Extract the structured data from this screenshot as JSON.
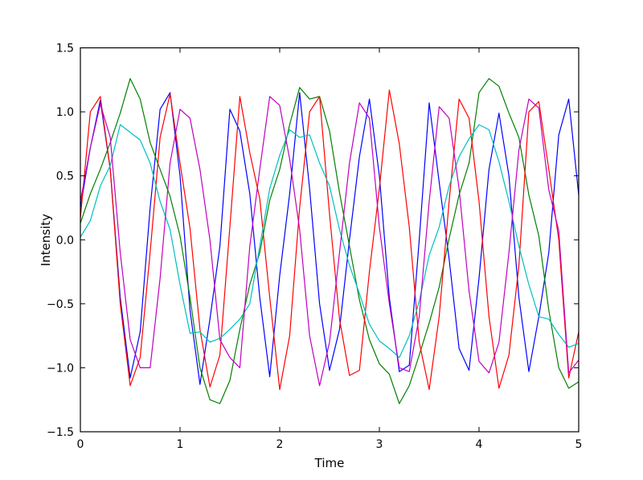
{
  "figure": {
    "background": "#ffffff",
    "frame_color": "#000000"
  },
  "chart_data": {
    "type": "line",
    "title": "",
    "xlabel": "Time",
    "ylabel": "Intensity",
    "xlim": [
      0,
      5
    ],
    "ylim": [
      -1.5,
      1.5
    ],
    "grid": false,
    "legend": "none",
    "x_ticks": [
      "0",
      "1",
      "2",
      "3",
      "4",
      "5"
    ],
    "x_tick_values": [
      0,
      1,
      2,
      3,
      4,
      5
    ],
    "y_ticks": [
      "−1.5",
      "−1.0",
      "−0.5",
      "0.0",
      "0.5",
      "1.0",
      "1.5"
    ],
    "y_tick_values": [
      -1.5,
      -1.0,
      -0.5,
      0.0,
      0.5,
      1.0,
      1.5
    ],
    "t0": 0,
    "dt": 0.1,
    "series": [
      {
        "name": "blue-wave",
        "color": "#0000ff",
        "values": [
          0.25,
          0.72,
          1.09,
          0.55,
          -0.45,
          -1.08,
          -0.72,
          0.25,
          1.02,
          1.15,
          0.5,
          -0.55,
          -1.13,
          -0.62,
          -0.05,
          1.02,
          0.85,
          0.36,
          -0.45,
          -1.07,
          -0.28,
          0.36,
          1.15,
          0.4,
          -0.5,
          -1.02,
          -0.7,
          0.0,
          0.65,
          1.1,
          0.5,
          -0.45,
          -1.03,
          -0.98,
          0.0,
          1.07,
          0.45,
          -0.15,
          -0.85,
          -1.02,
          -0.3,
          0.55,
          0.99,
          0.5,
          -0.45,
          -1.03,
          -0.6,
          -0.1,
          0.82,
          1.1,
          0.35
        ]
      },
      {
        "name": "green-wave",
        "color": "#008000",
        "values": [
          0.13,
          0.36,
          0.55,
          0.76,
          0.99,
          1.26,
          1.1,
          0.76,
          0.55,
          0.34,
          0.03,
          -0.45,
          -1.0,
          -1.25,
          -1.28,
          -1.1,
          -0.7,
          -0.35,
          -0.1,
          0.31,
          0.55,
          0.9,
          1.19,
          1.1,
          1.12,
          0.85,
          0.37,
          -0.05,
          -0.47,
          -0.78,
          -0.97,
          -1.05,
          -1.28,
          -1.14,
          -0.9,
          -0.65,
          -0.37,
          0.01,
          0.35,
          0.6,
          1.15,
          1.26,
          1.2,
          0.99,
          0.8,
          0.35,
          0.03,
          -0.55,
          -1.0,
          -1.16,
          -1.11
        ]
      },
      {
        "name": "red-wave",
        "color": "#ff0000",
        "values": [
          0.17,
          1.0,
          1.12,
          0.55,
          -0.5,
          -1.14,
          -0.92,
          -0.1,
          0.8,
          1.14,
          0.6,
          0.09,
          -0.7,
          -1.15,
          -0.9,
          0.1,
          1.12,
          0.68,
          0.32,
          -0.45,
          -1.17,
          -0.75,
          0.25,
          1.0,
          1.12,
          0.2,
          -0.62,
          -1.06,
          -1.02,
          -0.25,
          0.4,
          1.17,
          0.75,
          0.1,
          -0.8,
          -1.17,
          -0.6,
          0.3,
          1.1,
          0.95,
          0.3,
          -0.6,
          -1.16,
          -0.9,
          -0.2,
          1.0,
          1.08,
          0.55,
          0.0,
          -1.08,
          -0.72
        ]
      },
      {
        "name": "cyan-wave",
        "color": "#00bfbf",
        "values": [
          0.02,
          0.15,
          0.42,
          0.58,
          0.9,
          0.84,
          0.78,
          0.6,
          0.3,
          0.08,
          -0.35,
          -0.73,
          -0.72,
          -0.8,
          -0.77,
          -0.7,
          -0.62,
          -0.5,
          -0.05,
          0.4,
          0.66,
          0.86,
          0.8,
          0.82,
          0.6,
          0.42,
          0.08,
          -0.2,
          -0.42,
          -0.66,
          -0.79,
          -0.85,
          -0.92,
          -0.75,
          -0.48,
          -0.12,
          0.1,
          0.42,
          0.65,
          0.79,
          0.9,
          0.86,
          0.61,
          0.3,
          -0.05,
          -0.35,
          -0.6,
          -0.62,
          -0.74,
          -0.84,
          -0.81
        ]
      },
      {
        "name": "magenta-wave",
        "color": "#bf00bf",
        "values": [
          0.3,
          0.72,
          1.06,
          0.8,
          -0.1,
          -0.78,
          -1.0,
          -1.0,
          -0.3,
          0.6,
          1.02,
          0.95,
          0.55,
          0.0,
          -0.78,
          -0.92,
          -1.0,
          -0.05,
          0.55,
          1.12,
          1.05,
          0.63,
          0.08,
          -0.75,
          -1.14,
          -0.8,
          -0.1,
          0.6,
          1.07,
          0.95,
          0.1,
          -0.5,
          -1.0,
          -1.03,
          -0.6,
          0.3,
          1.04,
          0.95,
          0.4,
          -0.4,
          -0.95,
          -1.04,
          -0.8,
          -0.1,
          0.7,
          1.1,
          1.03,
          0.39,
          0.07,
          -1.04,
          -0.94
        ]
      }
    ]
  }
}
